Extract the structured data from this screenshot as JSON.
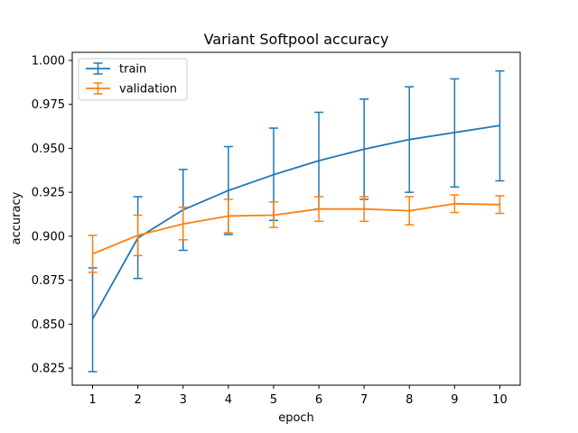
{
  "chart_data": {
    "type": "line",
    "title": "Variant Softpool accuracy",
    "xlabel": "epoch",
    "ylabel": "accuracy",
    "x": [
      1,
      2,
      3,
      4,
      5,
      6,
      7,
      8,
      9,
      10
    ],
    "xlim": [
      0.55,
      10.45
    ],
    "ylim": [
      0.8153,
      1.0046
    ],
    "x_ticks": [
      1,
      2,
      3,
      4,
      5,
      6,
      7,
      8,
      9,
      10
    ],
    "y_ticks": [
      0.825,
      0.85,
      0.875,
      0.9,
      0.925,
      0.95,
      0.975,
      1.0
    ],
    "y_tick_labels": [
      "0.825",
      "0.850",
      "0.875",
      "0.900",
      "0.925",
      "0.950",
      "0.975",
      "1.000"
    ],
    "grid": false,
    "legend_position": "upper-left",
    "series": [
      {
        "name": "train",
        "color": "#1f77b4",
        "values": [
          0.853,
          0.899,
          0.915,
          0.926,
          0.935,
          0.943,
          0.9495,
          0.955,
          0.959,
          0.963
        ],
        "err_low": [
          0.823,
          0.876,
          0.892,
          0.901,
          0.909,
          0.9155,
          0.921,
          0.925,
          0.928,
          0.9315
        ],
        "err_high": [
          0.882,
          0.9225,
          0.938,
          0.951,
          0.9615,
          0.9705,
          0.978,
          0.985,
          0.9895,
          0.994
        ]
      },
      {
        "name": "validation",
        "color": "#ff7f0e",
        "values": [
          0.89,
          0.9005,
          0.907,
          0.9115,
          0.912,
          0.9155,
          0.9155,
          0.9145,
          0.9185,
          0.918
        ],
        "err_low": [
          0.8795,
          0.889,
          0.898,
          0.902,
          0.905,
          0.9085,
          0.9085,
          0.9065,
          0.9135,
          0.913
        ],
        "err_high": [
          0.9005,
          0.912,
          0.9165,
          0.921,
          0.9195,
          0.9225,
          0.9225,
          0.9225,
          0.9235,
          0.923
        ]
      }
    ]
  }
}
